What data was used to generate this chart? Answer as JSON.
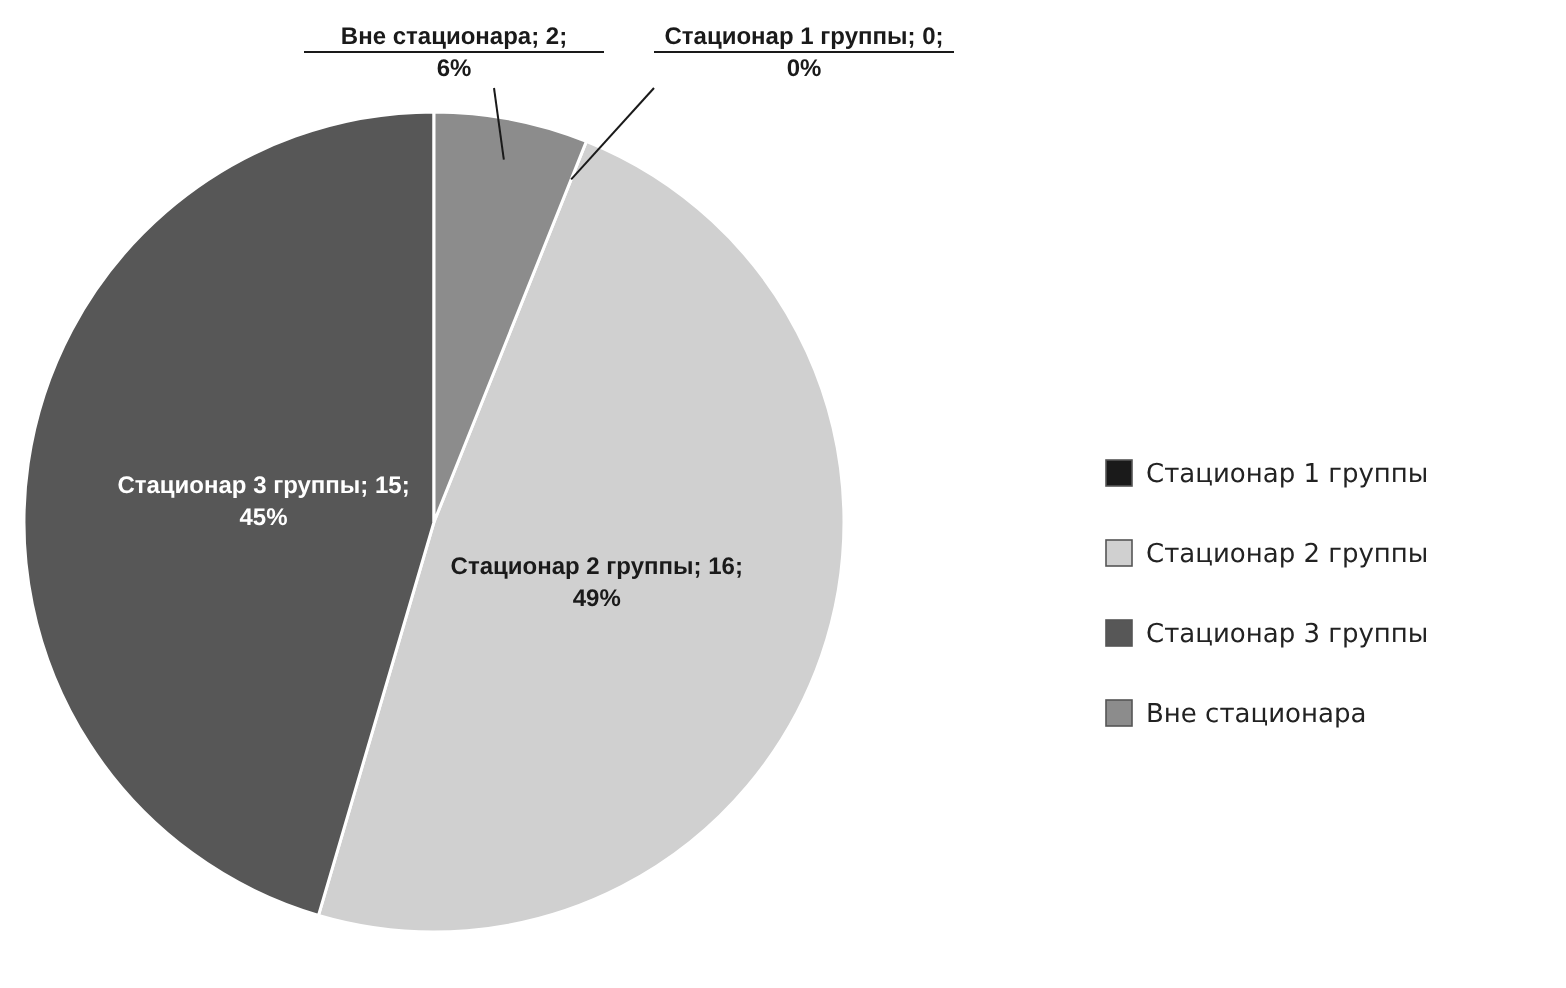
{
  "chart_data": {
    "type": "pie",
    "categories": [
      "Стационар 1 группы",
      "Стационар 2 группы",
      "Стационар 3 группы",
      "Вне стационара"
    ],
    "values": [
      0,
      16,
      15,
      2
    ],
    "colors": [
      "#1a1a1a",
      "#d0d0d0",
      "#575757",
      "#8c8c8c"
    ],
    "value_labels": [
      "; 0; 0%",
      "; 16; 49%",
      "; 15; 45%",
      "; 2; 6%"
    ],
    "legend": "right"
  }
}
